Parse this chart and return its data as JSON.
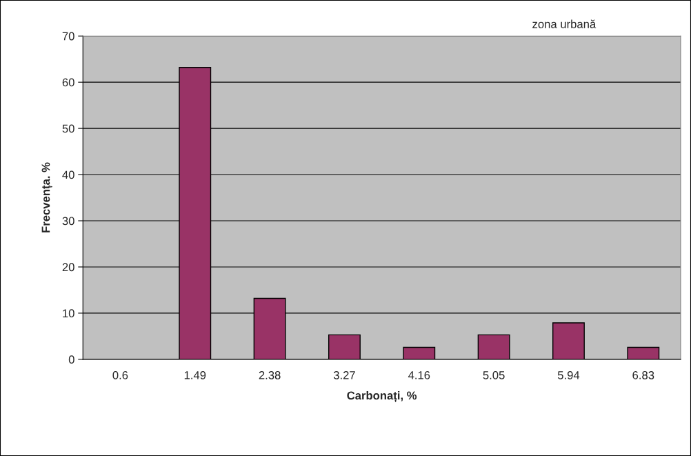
{
  "chart_data": {
    "type": "bar",
    "xlabel": "Carbonați, %",
    "ylabel": "Frecvența. %",
    "annotations": [
      "zona urbană"
    ],
    "categories": [
      "0.6",
      "1.49",
      "2.38",
      "3.27",
      "4.16",
      "5.05",
      "5.94",
      "6.83"
    ],
    "values": [
      0,
      63.2,
      13.2,
      5.3,
      2.6,
      5.3,
      7.9,
      2.6
    ],
    "color": "#993366",
    "ylim": [
      0,
      70
    ],
    "yticks": [
      0,
      10,
      20,
      30,
      40,
      50,
      60,
      70
    ],
    "grid": "y"
  }
}
